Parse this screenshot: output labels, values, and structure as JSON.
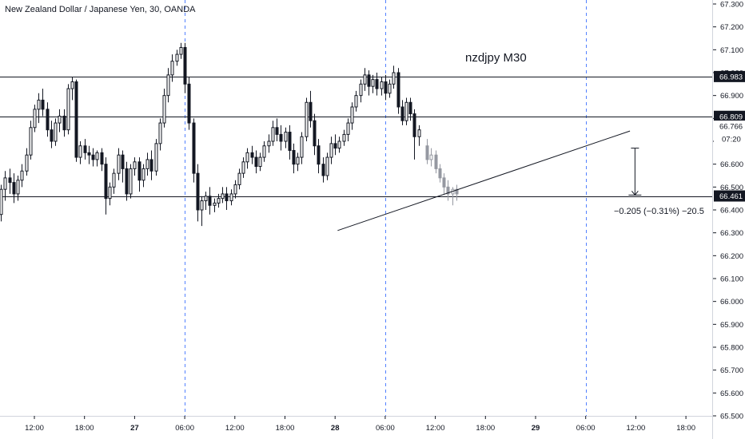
{
  "title": "New Zealand Dollar / Japanese Yen, 30, OANDA",
  "chart_data": {
    "type": "candlestick",
    "symbol": "NZDJPY",
    "interval_minutes": 30,
    "annotation": "nzdjpy M30",
    "ylim": [
      65.5,
      67.3
    ],
    "y_ticks": [
      "67.300",
      "67.200",
      "67.100",
      "67.000",
      "66.900",
      "66.800",
      "66.700",
      "66.600",
      "66.500",
      "66.400",
      "66.300",
      "66.200",
      "66.100",
      "66.000",
      "65.900",
      "65.800",
      "65.700",
      "65.600",
      "65.500"
    ],
    "x_ticks": [
      {
        "label": "12:00",
        "hour": 12
      },
      {
        "label": "18:00",
        "hour": 18
      },
      {
        "label": "27",
        "hour": 24,
        "bold": true
      },
      {
        "label": "06:00",
        "hour": 30
      },
      {
        "label": "12:00",
        "hour": 36
      },
      {
        "label": "18:00",
        "hour": 42
      },
      {
        "label": "28",
        "hour": 48,
        "bold": true
      },
      {
        "label": "06:00",
        "hour": 54
      },
      {
        "label": "12:00",
        "hour": 60
      },
      {
        "label": "18:00",
        "hour": 66
      },
      {
        "label": "29",
        "hour": 72,
        "bold": true
      },
      {
        "label": "06:00",
        "hour": 78
      },
      {
        "label": "12:00",
        "hour": 84
      },
      {
        "label": "18:00",
        "hour": 90
      }
    ],
    "session_lines_hours": [
      30,
      54,
      78
    ],
    "horizontal_levels": [
      {
        "label": "66.983",
        "value": 66.983
      },
      {
        "label": "66.809",
        "value": 66.809
      },
      {
        "label": "66.461",
        "value": 66.461
      }
    ],
    "current_price": {
      "label": "66.766",
      "value": 66.766
    },
    "countdown": {
      "label": "07:20",
      "value": 66.71
    },
    "trendline": [
      {
        "hour": 48.3,
        "price": 66.31
      },
      {
        "hour": 83.3,
        "price": 66.745
      }
    ],
    "measure": {
      "text": "−0.205 (−0.31%) −20.5",
      "from_price": 66.67,
      "to_price": 66.465,
      "hour": 83.9
    },
    "projection": [
      {
        "open": 66.68,
        "high": 66.71,
        "close": 66.62,
        "low": 66.6
      },
      {
        "open": 66.62,
        "high": 66.67,
        "close": 66.64,
        "low": 66.59
      },
      {
        "open": 66.64,
        "high": 66.66,
        "close": 66.58,
        "low": 66.56
      },
      {
        "open": 66.58,
        "high": 66.6,
        "close": 66.54,
        "low": 66.52
      },
      {
        "open": 66.54,
        "high": 66.56,
        "close": 66.5,
        "low": 66.47
      },
      {
        "open": 66.5,
        "high": 66.53,
        "close": 66.47,
        "low": 66.44
      },
      {
        "open": 66.47,
        "high": 66.5,
        "close": 66.49,
        "low": 66.42
      },
      {
        "open": 66.49,
        "high": 66.51,
        "close": 66.47,
        "low": 66.44
      }
    ],
    "start_hour": 0,
    "candles": [
      {
        "open": 65.68,
        "high": 65.76,
        "close": 65.71,
        "low": 65.64
      },
      {
        "open": 65.71,
        "high": 65.83,
        "close": 65.79,
        "low": 65.69
      },
      {
        "open": 65.79,
        "high": 65.92,
        "close": 65.9,
        "low": 65.75
      },
      {
        "open": 65.9,
        "high": 66.09,
        "close": 66.05,
        "low": 65.88
      },
      {
        "open": 66.05,
        "high": 66.13,
        "close": 66.08,
        "low": 66.02
      },
      {
        "open": 66.08,
        "high": 66.1,
        "close": 66.03,
        "low": 66.0
      },
      {
        "open": 66.03,
        "high": 66.08,
        "close": 66.05,
        "low": 65.99
      },
      {
        "open": 66.05,
        "high": 66.11,
        "close": 66.06,
        "low": 66.02
      },
      {
        "open": 66.06,
        "high": 66.13,
        "close": 66.1,
        "low": 66.04
      },
      {
        "open": 66.1,
        "high": 66.14,
        "close": 66.09,
        "low": 66.05
      },
      {
        "open": 66.09,
        "high": 66.16,
        "close": 66.14,
        "low": 66.08
      },
      {
        "open": 66.14,
        "high": 66.22,
        "close": 66.2,
        "low": 66.12
      },
      {
        "open": 66.2,
        "high": 66.26,
        "close": 66.24,
        "low": 66.15
      },
      {
        "open": 66.24,
        "high": 66.34,
        "close": 66.31,
        "low": 66.2
      },
      {
        "open": 66.31,
        "high": 66.35,
        "close": 66.34,
        "low": 66.27
      },
      {
        "open": 66.34,
        "high": 66.4,
        "close": 66.38,
        "low": 66.31
      },
      {
        "open": 66.38,
        "high": 66.51,
        "close": 66.49,
        "low": 66.35
      },
      {
        "open": 66.49,
        "high": 66.57,
        "close": 66.54,
        "low": 66.44
      },
      {
        "open": 66.54,
        "high": 66.58,
        "close": 66.52,
        "low": 66.47
      },
      {
        "open": 66.52,
        "high": 66.56,
        "close": 66.47,
        "low": 66.43
      },
      {
        "open": 66.47,
        "high": 66.55,
        "close": 66.53,
        "low": 66.44
      },
      {
        "open": 66.53,
        "high": 66.6,
        "close": 66.57,
        "low": 66.5
      },
      {
        "open": 66.57,
        "high": 66.67,
        "close": 66.64,
        "low": 66.55
      },
      {
        "open": 66.64,
        "high": 66.79,
        "close": 66.76,
        "low": 66.62
      },
      {
        "open": 66.76,
        "high": 66.86,
        "close": 66.84,
        "low": 66.74
      },
      {
        "open": 66.84,
        "high": 66.91,
        "close": 66.88,
        "low": 66.78
      },
      {
        "open": 66.88,
        "high": 66.93,
        "close": 66.84,
        "low": 66.81
      },
      {
        "open": 66.84,
        "high": 66.87,
        "close": 66.75,
        "low": 66.72
      },
      {
        "open": 66.75,
        "high": 66.79,
        "close": 66.7,
        "low": 66.67
      },
      {
        "open": 66.7,
        "high": 66.8,
        "close": 66.78,
        "low": 66.68
      },
      {
        "open": 66.78,
        "high": 66.84,
        "close": 66.81,
        "low": 66.74
      },
      {
        "open": 66.81,
        "high": 66.84,
        "close": 66.75,
        "low": 66.72
      },
      {
        "open": 66.75,
        "high": 66.95,
        "close": 66.93,
        "low": 66.73
      },
      {
        "open": 66.93,
        "high": 66.98,
        "close": 66.96,
        "low": 66.88
      },
      {
        "open": 66.96,
        "high": 66.97,
        "close": 66.63,
        "low": 66.61
      },
      {
        "open": 66.63,
        "high": 66.7,
        "close": 66.68,
        "low": 66.6
      },
      {
        "open": 66.68,
        "high": 66.71,
        "close": 66.65,
        "low": 66.62
      },
      {
        "open": 66.65,
        "high": 66.68,
        "close": 66.64,
        "low": 66.6
      },
      {
        "open": 66.64,
        "high": 66.67,
        "close": 66.62,
        "low": 66.59
      },
      {
        "open": 66.62,
        "high": 66.66,
        "close": 66.65,
        "low": 66.59
      },
      {
        "open": 66.65,
        "high": 66.67,
        "close": 66.6,
        "low": 66.57
      },
      {
        "open": 66.6,
        "high": 66.63,
        "close": 66.45,
        "low": 66.38
      },
      {
        "open": 66.45,
        "high": 66.52,
        "close": 66.5,
        "low": 66.42
      },
      {
        "open": 66.5,
        "high": 66.58,
        "close": 66.56,
        "low": 66.47
      },
      {
        "open": 66.56,
        "high": 66.67,
        "close": 66.64,
        "low": 66.53
      },
      {
        "open": 66.64,
        "high": 66.66,
        "close": 66.58,
        "low": 66.52
      },
      {
        "open": 66.58,
        "high": 66.61,
        "close": 66.47,
        "low": 66.44
      },
      {
        "open": 66.47,
        "high": 66.6,
        "close": 66.58,
        "low": 66.45
      },
      {
        "open": 66.58,
        "high": 66.63,
        "close": 66.61,
        "low": 66.55
      },
      {
        "open": 66.61,
        "high": 66.63,
        "close": 66.53,
        "low": 66.48
      },
      {
        "open": 66.53,
        "high": 66.6,
        "close": 66.58,
        "low": 66.5
      },
      {
        "open": 66.58,
        "high": 66.65,
        "close": 66.62,
        "low": 66.55
      },
      {
        "open": 66.62,
        "high": 66.66,
        "close": 66.57,
        "low": 66.53
      },
      {
        "open": 66.57,
        "high": 66.71,
        "close": 66.69,
        "low": 66.55
      },
      {
        "open": 66.69,
        "high": 66.8,
        "close": 66.78,
        "low": 66.66
      },
      {
        "open": 66.78,
        "high": 66.93,
        "close": 66.9,
        "low": 66.76
      },
      {
        "open": 66.9,
        "high": 67.02,
        "close": 66.99,
        "low": 66.87
      },
      {
        "open": 66.99,
        "high": 67.08,
        "close": 67.05,
        "low": 66.96
      },
      {
        "open": 67.05,
        "high": 67.1,
        "close": 67.08,
        "low": 67.03
      },
      {
        "open": 67.08,
        "high": 67.13,
        "close": 67.11,
        "low": 67.06
      },
      {
        "open": 67.11,
        "high": 67.13,
        "close": 66.95,
        "low": 66.91
      },
      {
        "open": 66.95,
        "high": 66.98,
        "close": 66.78,
        "low": 66.75
      },
      {
        "open": 66.78,
        "high": 66.8,
        "close": 66.56,
        "low": 66.52
      },
      {
        "open": 66.56,
        "high": 66.6,
        "close": 66.4,
        "low": 66.35
      },
      {
        "open": 66.4,
        "high": 66.46,
        "close": 66.44,
        "low": 66.33
      },
      {
        "open": 66.44,
        "high": 66.48,
        "close": 66.46,
        "low": 66.4
      },
      {
        "open": 66.46,
        "high": 66.5,
        "close": 66.42,
        "low": 66.38
      },
      {
        "open": 66.42,
        "high": 66.45,
        "close": 66.43,
        "low": 66.39
      },
      {
        "open": 66.43,
        "high": 66.47,
        "close": 66.45,
        "low": 66.41
      },
      {
        "open": 66.45,
        "high": 66.5,
        "close": 66.47,
        "low": 66.43
      },
      {
        "open": 66.47,
        "high": 66.5,
        "close": 66.44,
        "low": 66.4
      },
      {
        "open": 66.44,
        "high": 66.49,
        "close": 66.47,
        "low": 66.42
      },
      {
        "open": 66.47,
        "high": 66.53,
        "close": 66.51,
        "low": 66.45
      },
      {
        "open": 66.51,
        "high": 66.58,
        "close": 66.56,
        "low": 66.49
      },
      {
        "open": 66.56,
        "high": 66.63,
        "close": 66.61,
        "low": 66.54
      },
      {
        "open": 66.61,
        "high": 66.67,
        "close": 66.65,
        "low": 66.58
      },
      {
        "open": 66.65,
        "high": 66.68,
        "close": 66.63,
        "low": 66.6
      },
      {
        "open": 66.63,
        "high": 66.66,
        "close": 66.59,
        "low": 66.56
      },
      {
        "open": 66.59,
        "high": 66.65,
        "close": 66.63,
        "low": 66.57
      },
      {
        "open": 66.63,
        "high": 66.7,
        "close": 66.68,
        "low": 66.61
      },
      {
        "open": 66.68,
        "high": 66.73,
        "close": 66.7,
        "low": 66.65
      },
      {
        "open": 66.7,
        "high": 66.79,
        "close": 66.76,
        "low": 66.68
      },
      {
        "open": 66.76,
        "high": 66.8,
        "close": 66.73,
        "low": 66.7
      },
      {
        "open": 66.73,
        "high": 66.77,
        "close": 66.7,
        "low": 66.66
      },
      {
        "open": 66.7,
        "high": 66.76,
        "close": 66.74,
        "low": 66.67
      },
      {
        "open": 66.74,
        "high": 66.77,
        "close": 66.66,
        "low": 66.62
      },
      {
        "open": 66.66,
        "high": 66.69,
        "close": 66.6,
        "low": 66.56
      },
      {
        "open": 66.6,
        "high": 66.65,
        "close": 66.63,
        "low": 66.57
      },
      {
        "open": 66.63,
        "high": 66.74,
        "close": 66.72,
        "low": 66.6
      },
      {
        "open": 66.72,
        "high": 66.89,
        "close": 66.87,
        "low": 66.7
      },
      {
        "open": 66.87,
        "high": 66.92,
        "close": 66.79,
        "low": 66.76
      },
      {
        "open": 66.79,
        "high": 66.82,
        "close": 66.68,
        "low": 66.64
      },
      {
        "open": 66.68,
        "high": 66.71,
        "close": 66.6,
        "low": 66.56
      },
      {
        "open": 66.6,
        "high": 66.63,
        "close": 66.55,
        "low": 66.52
      },
      {
        "open": 66.55,
        "high": 66.65,
        "close": 66.63,
        "low": 66.53
      },
      {
        "open": 66.63,
        "high": 66.72,
        "close": 66.69,
        "low": 66.6
      },
      {
        "open": 66.69,
        "high": 66.73,
        "close": 66.67,
        "low": 66.64
      },
      {
        "open": 66.67,
        "high": 66.72,
        "close": 66.7,
        "low": 66.65
      },
      {
        "open": 66.7,
        "high": 66.75,
        "close": 66.73,
        "low": 66.68
      },
      {
        "open": 66.73,
        "high": 66.8,
        "close": 66.78,
        "low": 66.7
      },
      {
        "open": 66.78,
        "high": 66.87,
        "close": 66.85,
        "low": 66.75
      },
      {
        "open": 66.85,
        "high": 66.92,
        "close": 66.9,
        "low": 66.83
      },
      {
        "open": 66.9,
        "high": 66.97,
        "close": 66.95,
        "low": 66.87
      },
      {
        "open": 66.95,
        "high": 67.02,
        "close": 66.99,
        "low": 66.92
      },
      {
        "open": 66.99,
        "high": 67.01,
        "close": 66.94,
        "low": 66.9
      },
      {
        "open": 66.94,
        "high": 66.99,
        "close": 66.97,
        "low": 66.91
      },
      {
        "open": 66.97,
        "high": 67.0,
        "close": 66.93,
        "low": 66.9
      },
      {
        "open": 66.93,
        "high": 66.98,
        "close": 66.96,
        "low": 66.9
      },
      {
        "open": 66.96,
        "high": 66.99,
        "close": 66.91,
        "low": 66.88
      },
      {
        "open": 66.91,
        "high": 66.97,
        "close": 66.95,
        "low": 66.89
      },
      {
        "open": 66.95,
        "high": 67.03,
        "close": 67.0,
        "low": 66.93
      },
      {
        "open": 67.0,
        "high": 67.02,
        "close": 66.85,
        "low": 66.82
      },
      {
        "open": 66.85,
        "high": 66.88,
        "close": 66.79,
        "low": 66.77
      },
      {
        "open": 66.79,
        "high": 66.89,
        "close": 66.87,
        "low": 66.77
      },
      {
        "open": 66.87,
        "high": 66.89,
        "close": 66.82,
        "low": 66.79
      },
      {
        "open": 66.82,
        "high": 66.84,
        "close": 66.72,
        "low": 66.62
      },
      {
        "open": 66.72,
        "high": 66.77,
        "close": 66.75,
        "low": 66.68
      }
    ]
  }
}
